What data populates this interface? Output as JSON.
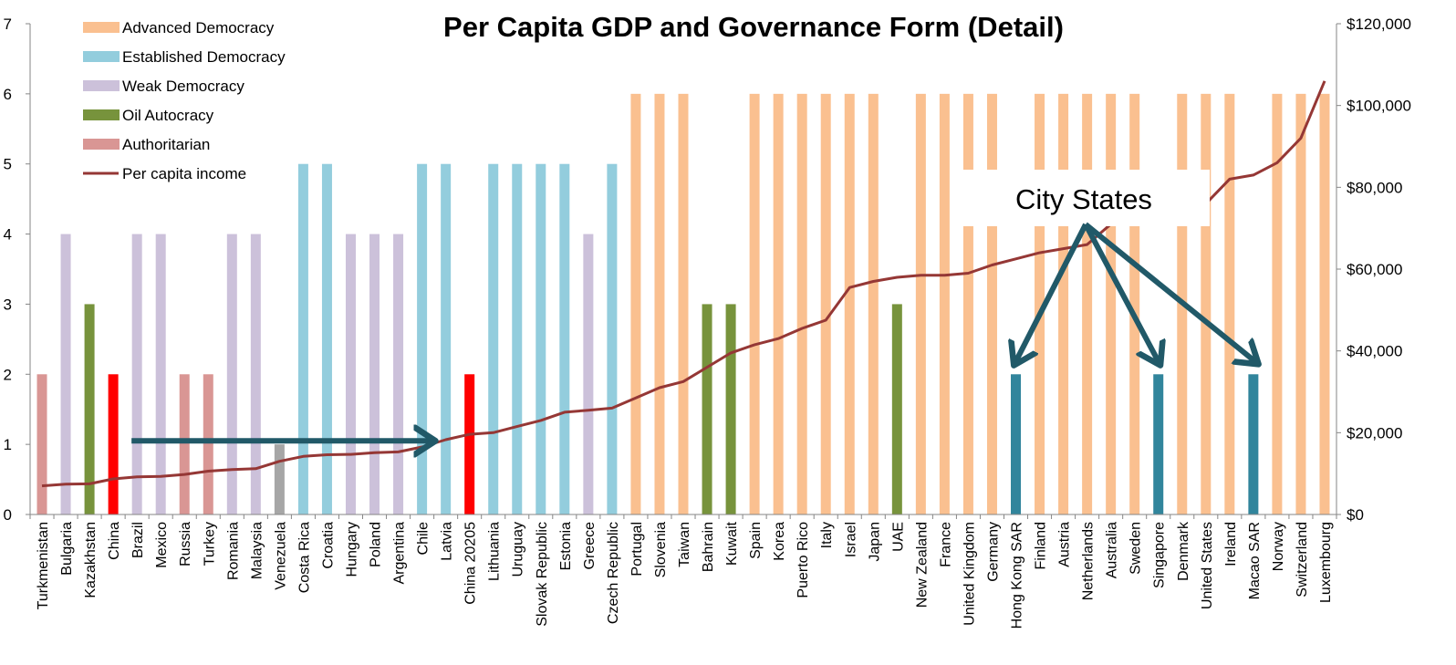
{
  "chart_data": {
    "type": "bar",
    "title": "Per Capita GDP and Governance Form (Detail)",
    "categories": [
      "Turkmenistan",
      "Bulgaria",
      "Kazakhstan",
      "China",
      "Brazil",
      "Mexico",
      "Russia",
      "Turkey",
      "Romania",
      "Malaysia",
      "Venezuela",
      "Costa Rica",
      "Croatia",
      "Hungary",
      "Poland",
      "Argentina",
      "Chile",
      "Latvia",
      "China 20205",
      "Lithuania",
      "Uruguay",
      "Slovak Republic",
      "Estonia",
      "Greece",
      "Czech Republic",
      "Portugal",
      "Slovenia",
      "Taiwan",
      "Bahrain",
      "Kuwait",
      "Spain",
      "Korea",
      "Puerto Rico",
      "Italy",
      "Israel",
      "Japan",
      "UAE",
      "New Zealand",
      "France",
      "United Kingdom",
      "Germany",
      "Hong Kong SAR",
      "Finland",
      "Austria",
      "Netherlands",
      "Australia",
      "Sweden",
      "Singapore",
      "Denmark",
      "United States",
      "Ireland",
      "Macao SAR",
      "Norway",
      "Switzerland",
      "Luxembourg"
    ],
    "bar_values": [
      2,
      4,
      3,
      2,
      4,
      4,
      2,
      2,
      4,
      4,
      1,
      5,
      5,
      4,
      4,
      4,
      5,
      5,
      2,
      5,
      5,
      5,
      5,
      4,
      5,
      6,
      6,
      6,
      3,
      3,
      6,
      6,
      6,
      6,
      6,
      6,
      3,
      6,
      6,
      6,
      6,
      2,
      6,
      6,
      6,
      6,
      6,
      2,
      6,
      6,
      6,
      2,
      6,
      6,
      6
    ],
    "bar_groups": [
      "Authoritarian",
      "Weak Democracy",
      "Oil Autocracy",
      "Authoritarian",
      "Weak Democracy",
      "Weak Democracy",
      "Authoritarian",
      "Authoritarian",
      "Weak Democracy",
      "Weak Democracy",
      "Other",
      "Established Democracy",
      "Established Democracy",
      "Weak Democracy",
      "Weak Democracy",
      "Weak Democracy",
      "Established Democracy",
      "Established Democracy",
      "Authoritarian",
      "Established Democracy",
      "Established Democracy",
      "Established Democracy",
      "Established Democracy",
      "Weak Democracy",
      "Established Democracy",
      "Advanced Democracy",
      "Advanced Democracy",
      "Advanced Democracy",
      "Oil Autocracy",
      "Oil Autocracy",
      "Advanced Democracy",
      "Advanced Democracy",
      "Advanced Democracy",
      "Advanced Democracy",
      "Advanced Democracy",
      "Advanced Democracy",
      "Oil Autocracy",
      "Advanced Democracy",
      "Advanced Democracy",
      "Advanced Democracy",
      "Advanced Democracy",
      "City State",
      "Advanced Democracy",
      "Advanced Democracy",
      "Advanced Democracy",
      "Advanced Democracy",
      "Advanced Democracy",
      "City State",
      "Advanced Democracy",
      "Advanced Democracy",
      "Advanced Democracy",
      "City State",
      "Advanced Democracy",
      "Advanced Democracy",
      "Advanced Democracy"
    ],
    "highlighted": [
      "China",
      "China 20205"
    ],
    "series": [
      {
        "name": "Per capita income",
        "axis": "right",
        "values": [
          7000,
          7400,
          7500,
          8700,
          9200,
          9300,
          9800,
          10600,
          11000,
          11200,
          13000,
          14200,
          14600,
          14700,
          15100,
          15300,
          16500,
          18300,
          19600,
          20000,
          21500,
          23000,
          25000,
          25500,
          26000,
          28500,
          31000,
          32500,
          36000,
          39500,
          41500,
          43000,
          45500,
          47500,
          55500,
          57000,
          58000,
          58500,
          58500,
          59000,
          61000,
          62500,
          64000,
          65000,
          66000,
          71000,
          71000,
          72500,
          73000,
          76000,
          82000,
          83000,
          86000,
          92000,
          106000
        ]
      }
    ],
    "ylim_left": [
      0,
      7
    ],
    "ylim_right": [
      0,
      120000
    ],
    "yticks_left": [
      "0",
      "1",
      "2",
      "3",
      "4",
      "5",
      "6",
      "7"
    ],
    "yticks_right": [
      "$0",
      "$20,000",
      "$40,000",
      "$60,000",
      "$80,000",
      "$100,000",
      "$120,000"
    ],
    "legend": [
      {
        "name": "Advanced Democracy",
        "color": "#FAC090"
      },
      {
        "name": "Established Democracy",
        "color": "#93CDDD"
      },
      {
        "name": "Weak Democracy",
        "color": "#CCC1DA"
      },
      {
        "name": "Oil Autocracy",
        "color": "#77933C"
      },
      {
        "name": "Authoritarian",
        "color": "#D99694"
      },
      {
        "name": "Per capita income",
        "color": "#953735"
      }
    ],
    "colors": {
      "Advanced Democracy": "#FAC090",
      "Established Democracy": "#93CDDD",
      "Weak Democracy": "#CCC1DA",
      "Oil Autocracy": "#77933C",
      "Authoritarian": "#D99694",
      "Other": "#A6A6A6",
      "City State": "#31859C",
      "highlight": "#FF0000",
      "line": "#953735",
      "arrow": "#215968"
    },
    "annotation": "City States",
    "arrows": [
      {
        "from": "Brazil",
        "to": "Chile",
        "level": 1.05
      },
      {
        "from_label": "City States",
        "to": "Hong Kong SAR"
      },
      {
        "from_label": "City States",
        "to": "Singapore"
      },
      {
        "from_label": "City States",
        "to": "Macao SAR"
      }
    ],
    "legend_position": "top-left",
    "grid": false
  }
}
